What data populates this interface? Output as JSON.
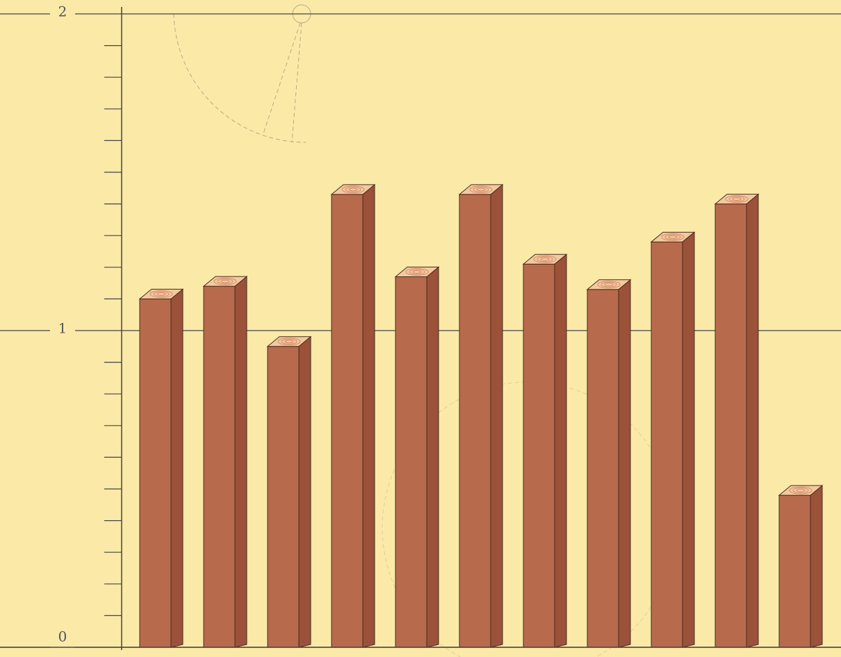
{
  "chart_data": {
    "type": "bar",
    "values": [
      1.1,
      1.14,
      0.95,
      1.43,
      1.17,
      1.43,
      1.21,
      1.13,
      1.28,
      1.4,
      0.48
    ],
    "color": "#b86a4c",
    "side_color": "#9b5238",
    "top_color": "#f3caa0",
    "ylim": [
      0,
      2
    ],
    "yticks": [
      0,
      1,
      2
    ],
    "yticks_minor": [
      0.1,
      0.2,
      0.3,
      0.4,
      0.5,
      0.6,
      0.7,
      0.8,
      0.9,
      1.1,
      1.2,
      1.3,
      1.4,
      1.5,
      1.6,
      1.7,
      1.8,
      1.9
    ],
    "grid": true
  }
}
